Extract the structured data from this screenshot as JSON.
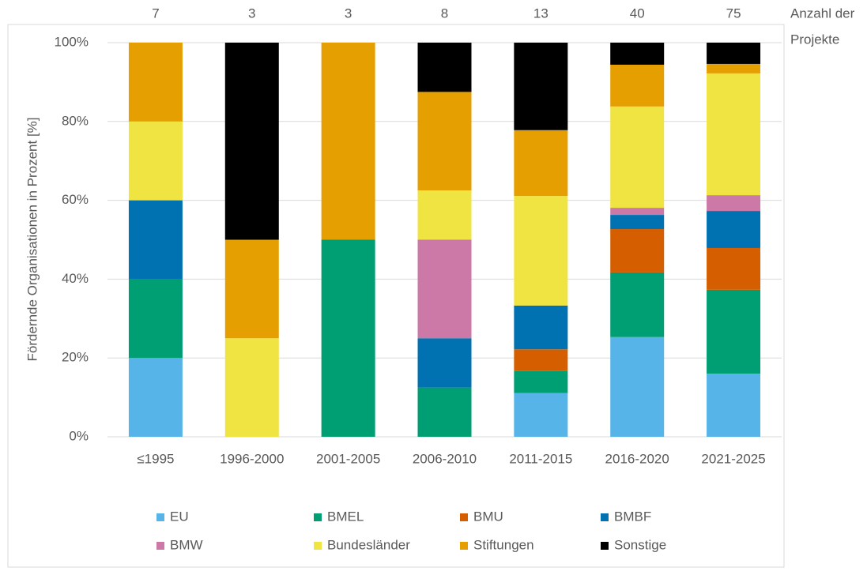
{
  "chart_data": {
    "type": "stacked_bar",
    "y_label": "Fördernde Organisationen in Prozent [%]",
    "categories": [
      "≤1995",
      "1996-2000",
      "2001-2005",
      "2006-2010",
      "2011-2015",
      "2016-2020",
      "2021-2025"
    ],
    "project_counts_title": [
      "Anzahl der",
      "Projekte"
    ],
    "project_counts": [
      7,
      3,
      3,
      8,
      13,
      40,
      75
    ],
    "series": [
      {
        "name": "EU",
        "color": "#56b4e9",
        "values": [
          20,
          0,
          0,
          0,
          11.1,
          25.3,
          16.0
        ]
      },
      {
        "name": "BMEL",
        "color": "#009e73",
        "values": [
          20,
          0,
          50,
          12.5,
          5.6,
          16.4,
          21.3
        ]
      },
      {
        "name": "BMU",
        "color": "#d55e00",
        "values": [
          0,
          0,
          0,
          0,
          5.5,
          11.0,
          10.6
        ]
      },
      {
        "name": "BMBF",
        "color": "#0072b2",
        "values": [
          20,
          0,
          0,
          12.5,
          11.1,
          3.6,
          9.4
        ]
      },
      {
        "name": "BMW",
        "color": "#cc79a7",
        "values": [
          0,
          0,
          0,
          25,
          0,
          1.8,
          4.0
        ]
      },
      {
        "name": "Bundesländer",
        "color": "#f0e442",
        "values": [
          20,
          25,
          0,
          12.5,
          27.8,
          25.7,
          30.9
        ]
      },
      {
        "name": "Stiftungen",
        "color": "#e69f00",
        "values": [
          20,
          25,
          50,
          25,
          16.7,
          10.6,
          2.4
        ]
      },
      {
        "name": "Sonstige",
        "color": "#000000",
        "values": [
          0,
          50,
          0,
          12.5,
          22.2,
          5.6,
          5.4
        ]
      }
    ],
    "ylim": [
      0,
      100
    ],
    "yticks": [
      {
        "value": 0,
        "label": "0%"
      },
      {
        "value": 20,
        "label": "20%"
      },
      {
        "value": 40,
        "label": "40%"
      },
      {
        "value": 60,
        "label": "60%"
      },
      {
        "value": 80,
        "label": "80%"
      },
      {
        "value": 100,
        "label": "100%"
      }
    ],
    "grid": true,
    "legend": "bottom"
  }
}
